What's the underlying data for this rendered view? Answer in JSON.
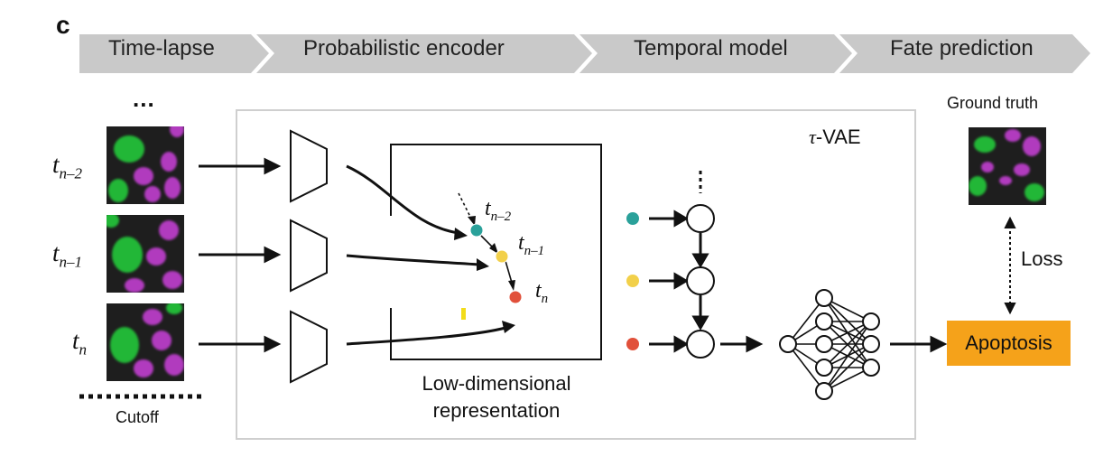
{
  "panel_letter": "c",
  "pipeline": {
    "steps": [
      "Time-lapse",
      "Probabilistic encoder",
      "Temporal model",
      "Fate prediction"
    ]
  },
  "timelapse": {
    "ellipsis": "...",
    "frame_labels": [
      {
        "base": "t",
        "sub": "n–2"
      },
      {
        "base": "t",
        "sub": "n–1"
      },
      {
        "base": "t",
        "sub": "n"
      }
    ],
    "cutoff_label": "Cutoff"
  },
  "model": {
    "name_symbol": "τ",
    "name_suffix": "-VAE",
    "latent_caption_line1": "Low-dimensional",
    "latent_caption_line2": "representation",
    "latent_points": [
      {
        "base": "t",
        "sub": "n–2",
        "color": "#2aa19a"
      },
      {
        "base": "t",
        "sub": "n–1",
        "color": "#f2d04a"
      },
      {
        "base": "t",
        "sub": "n",
        "color": "#e1503a"
      }
    ]
  },
  "outcome": {
    "ground_truth_label": "Ground truth",
    "loss_label": "Loss",
    "prediction_label": "Apoptosis",
    "prediction_color": "#f5a21a"
  },
  "colors": {
    "chevron_fill": "#c9c9c9",
    "frame_border": "#c9c9c9",
    "nucleus_green": "#23c83a",
    "nucleus_magenta": "#c13fd0"
  }
}
